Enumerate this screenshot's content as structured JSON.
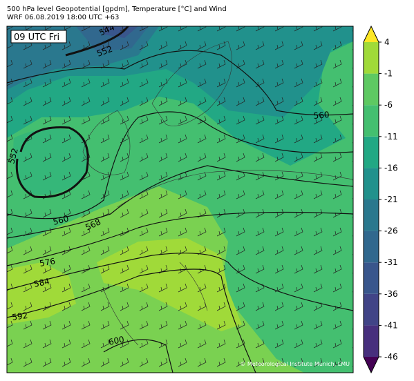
{
  "header": {
    "title": [
      "500 hPa level Geopotential [gpdm], Temperature [°C] and Wind",
      "WRF 06.08.2019 18:00 UTC +63"
    ]
  },
  "map": {
    "time_label": "09 UTC Fri",
    "copyright": "© Meteorological Institute Munich, LMU",
    "contour_labels": [
      "544",
      "552",
      "552",
      "560",
      "560",
      "568",
      "576",
      "584",
      "592",
      "600"
    ]
  },
  "colorbar": {
    "lim": [
      -46,
      4
    ],
    "ticks": [
      -46,
      -41,
      -36,
      -31,
      -26,
      -21,
      -16,
      -11,
      -6,
      -1,
      4
    ],
    "colors": [
      "#440154",
      "#481a6c",
      "#472f7d",
      "#414487",
      "#39568c",
      "#31688e",
      "#2a788e",
      "#21918c",
      "#22a884",
      "#44bf70",
      "#5ec962",
      "#a0da39",
      "#e3e418",
      "#fde725"
    ]
  }
}
